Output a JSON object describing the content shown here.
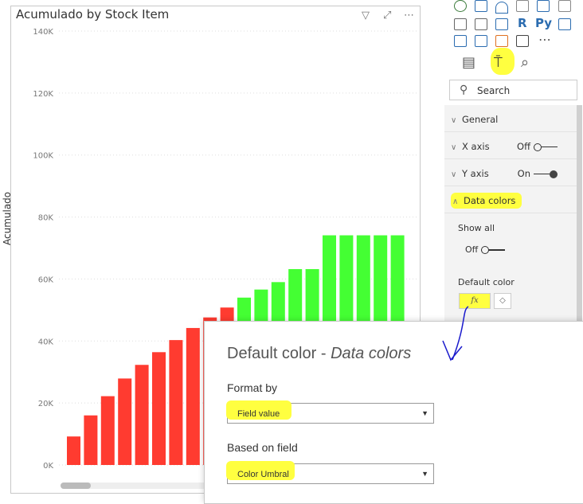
{
  "visual": {
    "title": "Acumulado by Stock Item",
    "icons": [
      "filter-icon",
      "focus-mode-icon",
      "more-options-icon"
    ],
    "y_axis_title": "Acumulado"
  },
  "chart_data": {
    "type": "bar",
    "title": "Acumulado by Stock Item",
    "xlabel": "",
    "ylabel": "Acumulado",
    "ylim": [
      0,
      140000
    ],
    "yticks": [
      "0K",
      "20K",
      "40K",
      "60K",
      "80K",
      "100K",
      "120K",
      "140K"
    ],
    "grid": true,
    "values": [
      9200,
      16000,
      22200,
      27900,
      32300,
      36400,
      40300,
      44200,
      47600,
      50800,
      54000,
      56600,
      59000,
      63200,
      63200,
      74100,
      74100,
      74100,
      74100,
      74100
    ],
    "colors": [
      "#ff3b30",
      "#ff3b30",
      "#ff3b30",
      "#ff3b30",
      "#ff3b30",
      "#ff3b30",
      "#ff3b30",
      "#ff3b30",
      "#ff3b30",
      "#ff3b30",
      "#44ff33",
      "#44ff33",
      "#44ff33",
      "#44ff33",
      "#44ff33",
      "#44ff33",
      "#44ff33",
      "#44ff33",
      "#44ff33",
      "#44ff33"
    ]
  },
  "pane": {
    "tabs": [
      "fields-icon",
      "format-paint-roller-icon",
      "analytics-icon"
    ],
    "search_placeholder": "Search",
    "sections": [
      {
        "label": "General"
      },
      {
        "label": "X axis",
        "toggle": "Off"
      },
      {
        "label": "Y axis",
        "toggle": "On"
      },
      {
        "label": "Data colors"
      }
    ],
    "show_all": "Show all",
    "show_all_toggle": "Off",
    "default_color": "Default color",
    "fx": "fx"
  },
  "dialog": {
    "title": "Default color - ",
    "title_italic": "Data colors",
    "format_by_label": "Format by",
    "format_by_value": "Field value",
    "based_on_label": "Based on field",
    "based_on_value": "Color Umbral"
  },
  "colors": {
    "red": "#ff3b30",
    "green": "#44ff33",
    "highlight": "#ffff40"
  }
}
